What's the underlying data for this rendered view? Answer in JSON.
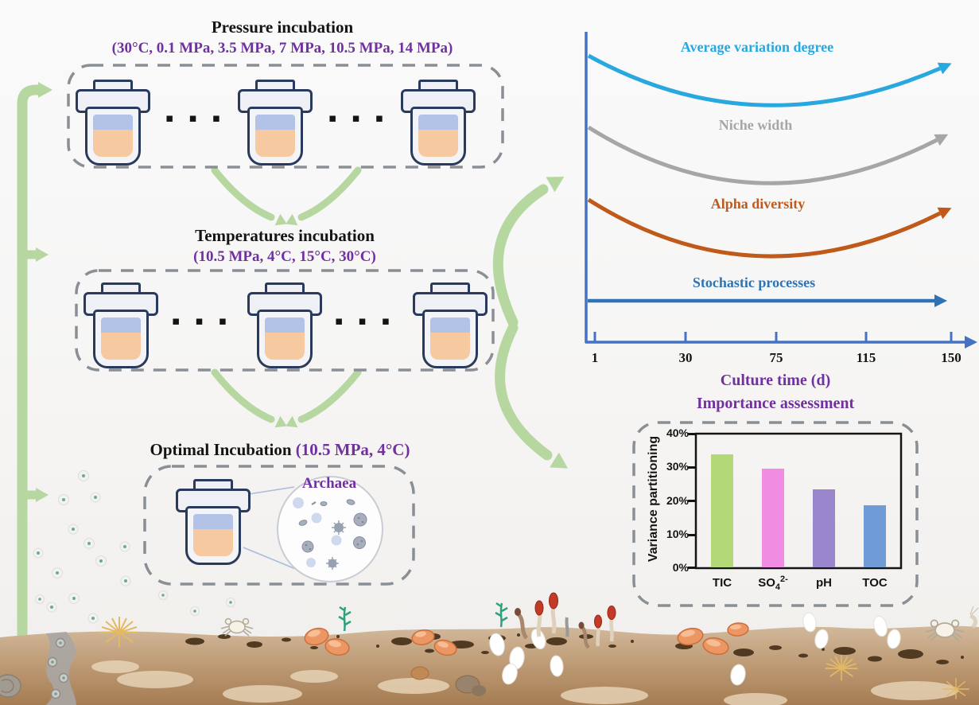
{
  "figure": {
    "type": "graphical-abstract",
    "colors": {
      "accent_purple": "#7030a0",
      "flow_arrow_green": "#b7d7a1",
      "axis_blue": "#4472c4",
      "jar_outline": "#2a3a5c",
      "jar_layer_top": "#b3c2e7",
      "jar_layer_bottom": "#f6c9a1",
      "dashed_border": "#8a8f96"
    }
  },
  "flow": {
    "pressure": {
      "title": "Pressure incubation",
      "conditions": "(30°C, 0.1 MPa, 3.5 MPa, 7 MPa, 10.5 MPa, 14 MPa)",
      "ellipsis": "▪ ▪ ▪"
    },
    "temperature": {
      "title": "Temperatures incubation",
      "conditions": "(10.5 MPa, 4°C, 15°C, 30°C)",
      "ellipsis": "▪ ▪ ▪"
    },
    "optimal": {
      "title": "Optimal Incubation ",
      "conditions": "(10.5 MPa, 4°C)",
      "inset_label": "Archaea"
    }
  },
  "chart_data": [
    {
      "type": "line",
      "xlabel": "Culture time (d)",
      "x_ticks": [
        1,
        30,
        75,
        115,
        150
      ],
      "x_tick_labels": [
        "1",
        "30",
        "75",
        "115",
        "150"
      ],
      "ylabel": "",
      "y_scale": "qualitative (no numeric y axis shown)",
      "legend_position": "label above each curve",
      "series": [
        {
          "name": "Average variation degree",
          "color": "#29a8e0",
          "trend": "U-shaped: high at day 1, minimum near day ~65, rising again through day 150",
          "values_relative": [
            0.92,
            0.72,
            0.6,
            0.7,
            0.9
          ]
        },
        {
          "name": "Niche width",
          "color": "#a6a6a6",
          "trend": "U-shaped",
          "values_relative": [
            0.68,
            0.45,
            0.34,
            0.44,
            0.66
          ]
        },
        {
          "name": "Alpha diversity",
          "color": "#c05a1a",
          "trend": "U-shaped",
          "values_relative": [
            0.44,
            0.2,
            0.1,
            0.2,
            0.42
          ]
        },
        {
          "name": "Stochastic processes",
          "color": "#2e74b5",
          "trend": "constant (flat horizontal arrow)",
          "values_relative": [
            0.05,
            0.05,
            0.05,
            0.05,
            0.05
          ]
        }
      ]
    },
    {
      "type": "bar",
      "title": "Importance assessment",
      "ylabel": "Variance partitioning",
      "ylim": [
        0,
        40
      ],
      "unit": "%",
      "ytick_labels": [
        "40%",
        "30%",
        "20%",
        "10%",
        "0%"
      ],
      "categories": [
        "TIC",
        "SO4 2-",
        "pH",
        "TOC"
      ],
      "labels_rich": [
        {
          "base": "TIC",
          "sub": "",
          "sup": ""
        },
        {
          "base": "SO",
          "sub": "4",
          "sup": "2-"
        },
        {
          "base": "pH",
          "sub": "",
          "sup": ""
        },
        {
          "base": "TOC",
          "sub": "",
          "sup": ""
        }
      ],
      "values": [
        34,
        29.7,
        23.4,
        18.6
      ],
      "colors": [
        "#b2d877",
        "#f08de2",
        "#9a86cd",
        "#6f9bd6"
      ]
    }
  ]
}
